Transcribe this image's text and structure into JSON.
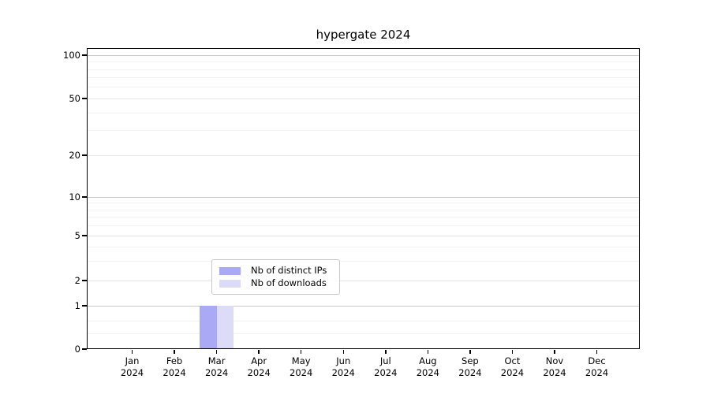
{
  "chart_data": {
    "type": "bar",
    "title": "hypergate 2024",
    "categories": [
      "Jan 2024",
      "Feb 2024",
      "Mar 2024",
      "Apr 2024",
      "May 2024",
      "Jun 2024",
      "Jul 2024",
      "Aug 2024",
      "Sep 2024",
      "Oct 2024",
      "Nov 2024",
      "Dec 2024"
    ],
    "series": [
      {
        "name": "Nb of distinct IPs",
        "color": "#a9a9f6",
        "values": [
          0,
          0,
          1,
          0,
          0,
          0,
          0,
          0,
          0,
          0,
          0,
          0
        ]
      },
      {
        "name": "Nb of downloads",
        "color": "#dcdcf9",
        "values": [
          0,
          0,
          1,
          0,
          0,
          0,
          0,
          0,
          0,
          0,
          0,
          0
        ]
      }
    ],
    "yticks": [
      0,
      1,
      2,
      5,
      10,
      20,
      50,
      100
    ],
    "ylim": [
      0,
      115
    ],
    "yscale": "log-like",
    "xlabel": "",
    "ylabel": "",
    "grid": true,
    "legend_position": "bottom-center-inside",
    "colors": {
      "axis": "#000000",
      "grid_major": "#c9c9c9",
      "grid_minor": "#f2f2f2"
    }
  }
}
